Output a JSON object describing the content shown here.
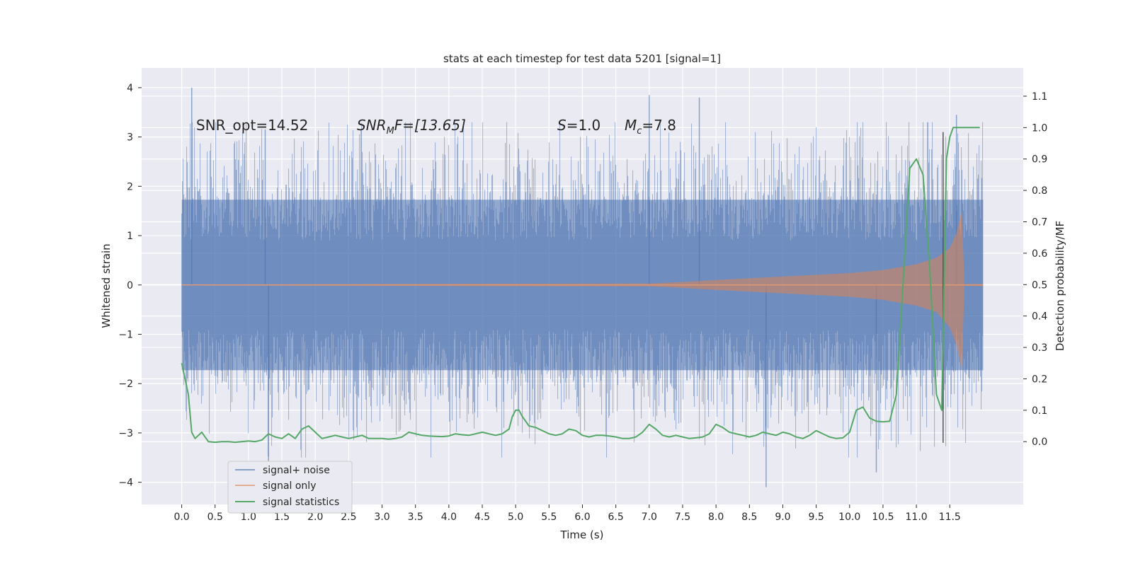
{
  "chart_data": {
    "type": "line",
    "title": "stats at each timestep for test data 5201 [signal=1]",
    "xlabel": "Time (s)",
    "ylabel": "Whitened strain",
    "ylabel_right": "Detection probability/MF",
    "xlim": [
      -0.6,
      12.6
    ],
    "ylim": [
      -4.45,
      4.4
    ],
    "ylim_right": [
      -0.2,
      1.19
    ],
    "x_ticks": [
      "0.0",
      "0.5",
      "1.0",
      "1.5",
      "2.0",
      "2.5",
      "3.0",
      "3.5",
      "4.0",
      "4.5",
      "5.0",
      "5.5",
      "6.0",
      "6.5",
      "7.0",
      "7.5",
      "8.0",
      "8.5",
      "9.0",
      "9.5",
      "10.0",
      "10.5",
      "11.0",
      "11.5"
    ],
    "y_ticks_left": [
      "4",
      "3",
      "2",
      "1",
      "0",
      "−1",
      "−2",
      "−3",
      "−4"
    ],
    "y_ticks_right": [
      "1.1",
      "1.0",
      "0.9",
      "0.8",
      "0.7",
      "0.6",
      "0.5",
      "0.4",
      "0.3",
      "0.2",
      "0.1",
      "0.0"
    ],
    "grid": true,
    "legend_position": "lower-left",
    "annotations": [
      {
        "text": "SNR_opt=14.52",
        "x": 0.2,
        "y": 3.1
      },
      {
        "text_parts": [
          "SNR",
          "M",
          "F=[13.65]"
        ],
        "x": 2.6,
        "y": 3.1
      },
      {
        "text_parts": [
          "S",
          "=1.0"
        ],
        "x": 5.6,
        "y": 3.1
      },
      {
        "text_parts": [
          "M",
          "c",
          "=7.8"
        ],
        "x": 6.6,
        "y": 3.1
      }
    ],
    "vline": {
      "x": 11.4,
      "y_range": [
        -3.2,
        3.1
      ],
      "color": "#555555"
    },
    "series": [
      {
        "name": "signal+ noise",
        "axis": "left",
        "color": "#4c72b0",
        "style": "dense noise band",
        "x_range": [
          0.0,
          12.0
        ],
        "envelope_upper": 2.4,
        "envelope_lower": -2.4,
        "notable_peaks": [
          [
            0.15,
            4.0
          ],
          [
            1.25,
            3.15
          ],
          [
            7.0,
            3.85
          ],
          [
            7.75,
            3.8
          ],
          [
            11.6,
            3.45
          ],
          [
            8.75,
            -4.1
          ],
          [
            10.4,
            -3.8
          ],
          [
            1.3,
            -3.7
          ]
        ]
      },
      {
        "name": "signal only",
        "axis": "left",
        "color": "#dd8452",
        "style": "chirp envelope",
        "envelope": [
          [
            0.0,
            0.01
          ],
          [
            7.0,
            0.03
          ],
          [
            7.5,
            0.06
          ],
          [
            8.0,
            0.1
          ],
          [
            9.0,
            0.17
          ],
          [
            10.0,
            0.24
          ],
          [
            10.5,
            0.3
          ],
          [
            11.0,
            0.42
          ],
          [
            11.3,
            0.55
          ],
          [
            11.5,
            0.75
          ],
          [
            11.6,
            1.05
          ],
          [
            11.68,
            1.5
          ],
          [
            11.72,
            0.02
          ],
          [
            12.0,
            0.02
          ]
        ]
      },
      {
        "name": "signal statistics",
        "axis": "right",
        "color": "#55a868",
        "x": [
          0.0,
          0.05,
          0.1,
          0.15,
          0.2,
          0.25,
          0.3,
          0.4,
          0.5,
          0.6,
          0.7,
          0.8,
          0.9,
          1.0,
          1.1,
          1.2,
          1.3,
          1.4,
          1.5,
          1.6,
          1.7,
          1.8,
          1.9,
          2.0,
          2.1,
          2.2,
          2.3,
          2.4,
          2.5,
          2.6,
          2.7,
          2.8,
          2.9,
          3.0,
          3.1,
          3.2,
          3.3,
          3.4,
          3.5,
          3.6,
          3.7,
          3.8,
          3.9,
          4.0,
          4.1,
          4.2,
          4.3,
          4.4,
          4.5,
          4.6,
          4.7,
          4.8,
          4.9,
          4.95,
          5.0,
          5.05,
          5.1,
          5.2,
          5.3,
          5.4,
          5.5,
          5.6,
          5.7,
          5.8,
          5.9,
          6.0,
          6.1,
          6.2,
          6.3,
          6.4,
          6.5,
          6.6,
          6.7,
          6.8,
          6.9,
          7.0,
          7.1,
          7.2,
          7.3,
          7.4,
          7.5,
          7.6,
          7.7,
          7.8,
          7.9,
          8.0,
          8.1,
          8.2,
          8.3,
          8.4,
          8.5,
          8.6,
          8.7,
          8.8,
          8.9,
          9.0,
          9.1,
          9.2,
          9.3,
          9.4,
          9.5,
          9.6,
          9.7,
          9.8,
          9.9,
          10.0,
          10.1,
          10.2,
          10.3,
          10.4,
          10.5,
          10.6,
          10.7,
          10.8,
          10.9,
          11.0,
          11.1,
          11.2,
          11.3,
          11.38,
          11.45,
          11.5,
          11.55,
          11.6,
          11.7,
          11.8,
          11.95
        ],
        "values": [
          0.25,
          0.2,
          0.15,
          0.03,
          0.01,
          0.02,
          0.03,
          0.0,
          -0.002,
          0.0,
          0.0,
          -0.002,
          0.0,
          0.002,
          0.0,
          0.005,
          0.025,
          0.015,
          0.01,
          0.025,
          0.01,
          0.04,
          0.05,
          0.03,
          0.01,
          0.015,
          0.02,
          0.015,
          0.01,
          0.015,
          0.02,
          0.01,
          0.01,
          0.01,
          0.008,
          0.01,
          0.015,
          0.03,
          0.025,
          0.02,
          0.018,
          0.017,
          0.016,
          0.018,
          0.025,
          0.022,
          0.02,
          0.025,
          0.03,
          0.025,
          0.02,
          0.025,
          0.04,
          0.08,
          0.1,
          0.1,
          0.08,
          0.05,
          0.045,
          0.035,
          0.025,
          0.02,
          0.025,
          0.04,
          0.035,
          0.02,
          0.015,
          0.02,
          0.02,
          0.018,
          0.015,
          0.01,
          0.01,
          0.015,
          0.03,
          0.055,
          0.04,
          0.02,
          0.015,
          0.02,
          0.015,
          0.01,
          0.012,
          0.015,
          0.025,
          0.055,
          0.045,
          0.03,
          0.025,
          0.02,
          0.015,
          0.02,
          0.03,
          0.025,
          0.02,
          0.03,
          0.025,
          0.015,
          0.01,
          0.02,
          0.035,
          0.025,
          0.015,
          0.01,
          0.012,
          0.03,
          0.1,
          0.11,
          0.075,
          0.065,
          0.063,
          0.065,
          0.15,
          0.5,
          0.87,
          0.9,
          0.85,
          0.55,
          0.15,
          0.1,
          0.9,
          0.97,
          1.0,
          1.0,
          1.0,
          1.0,
          1.0
        ]
      }
    ]
  }
}
